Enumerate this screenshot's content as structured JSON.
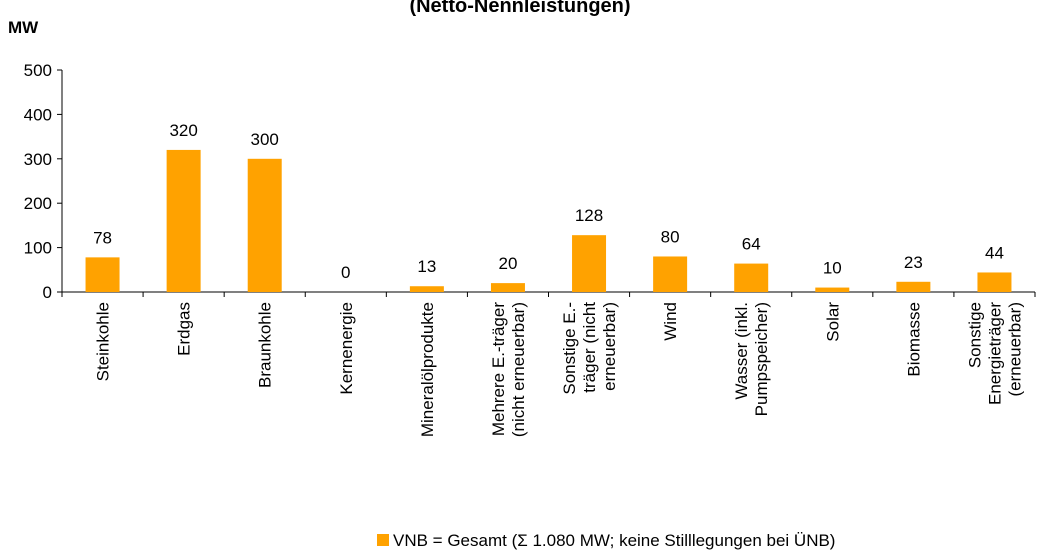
{
  "chart_data": {
    "type": "bar",
    "title": "(Netto-Nennleistungen)",
    "y_label": "MW",
    "categories": [
      "Steinkohle",
      "Erdgas",
      "Braunkohle",
      "Kernenergie",
      "Mineralölprodukte",
      "Mehrere E.-träger\n(nicht erneuerbar)",
      "Sonstige E.-\nträger (nicht\nerneuerbar)",
      "Wind",
      "Wasser (inkl.\nPumpspeicher)",
      "Solar",
      "Biomasse",
      "Sonstige\nEnergieträger\n(erneuerbar)"
    ],
    "series": [
      {
        "name": "VNB = Gesamt (Σ 1.080 MW; keine Stilllegungen bei ÜNB)",
        "color": "#ffa200",
        "values": [
          78,
          320,
          300,
          0,
          13,
          20,
          128,
          80,
          64,
          10,
          23,
          44
        ]
      }
    ],
    "ylim": [
      0,
      500
    ],
    "yticks": [
      0,
      100,
      200,
      300,
      400,
      500
    ],
    "grid": false,
    "legend": "bottom"
  }
}
